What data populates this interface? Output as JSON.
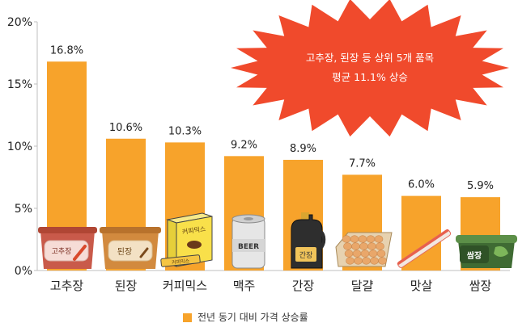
{
  "chart_data": {
    "type": "bar",
    "categories": [
      "고추장",
      "된장",
      "커피믹스",
      "맥주",
      "간장",
      "달걀",
      "맛살",
      "쌈장"
    ],
    "series": [
      {
        "name": "전년 동기 대비 가격 상승률",
        "values": [
          16.8,
          10.6,
          10.3,
          9.2,
          8.9,
          7.7,
          6.0,
          5.9
        ]
      }
    ],
    "data_labels": [
      "16.8%",
      "10.6%",
      "10.3%",
      "9.2%",
      "8.9%",
      "7.7%",
      "6.0%",
      "5.9%"
    ],
    "ylim": [
      0,
      20
    ],
    "yticks": [
      0,
      5,
      10,
      15,
      20
    ],
    "ytick_labels": [
      "0%",
      "5%",
      "10%",
      "15%",
      "20%"
    ],
    "grid": false,
    "legend_position": "bottom-center",
    "annotation": {
      "lines": [
        "고추장, 된장 등 상위 5개 품목",
        "평균 11.1% 상승"
      ],
      "shape": "starburst",
      "color": "#f04a2c"
    },
    "bar_color": "#f7a32b",
    "product_labels": {
      "gochujang": "고추장",
      "doenjang": "된장",
      "coffeemix": "커피믹스",
      "coffeemix_stick": "커피믹스",
      "beer": "BEER",
      "soysauce": "간장",
      "ssamjang": "쌈장"
    },
    "product_icons": [
      "gochujang-tub-icon",
      "doenjang-tub-icon",
      "coffee-mix-box-icon",
      "beer-can-icon",
      "soy-sauce-bottle-icon",
      "egg-tray-icon",
      "crab-stick-icon",
      "ssamjang-tub-icon"
    ]
  }
}
